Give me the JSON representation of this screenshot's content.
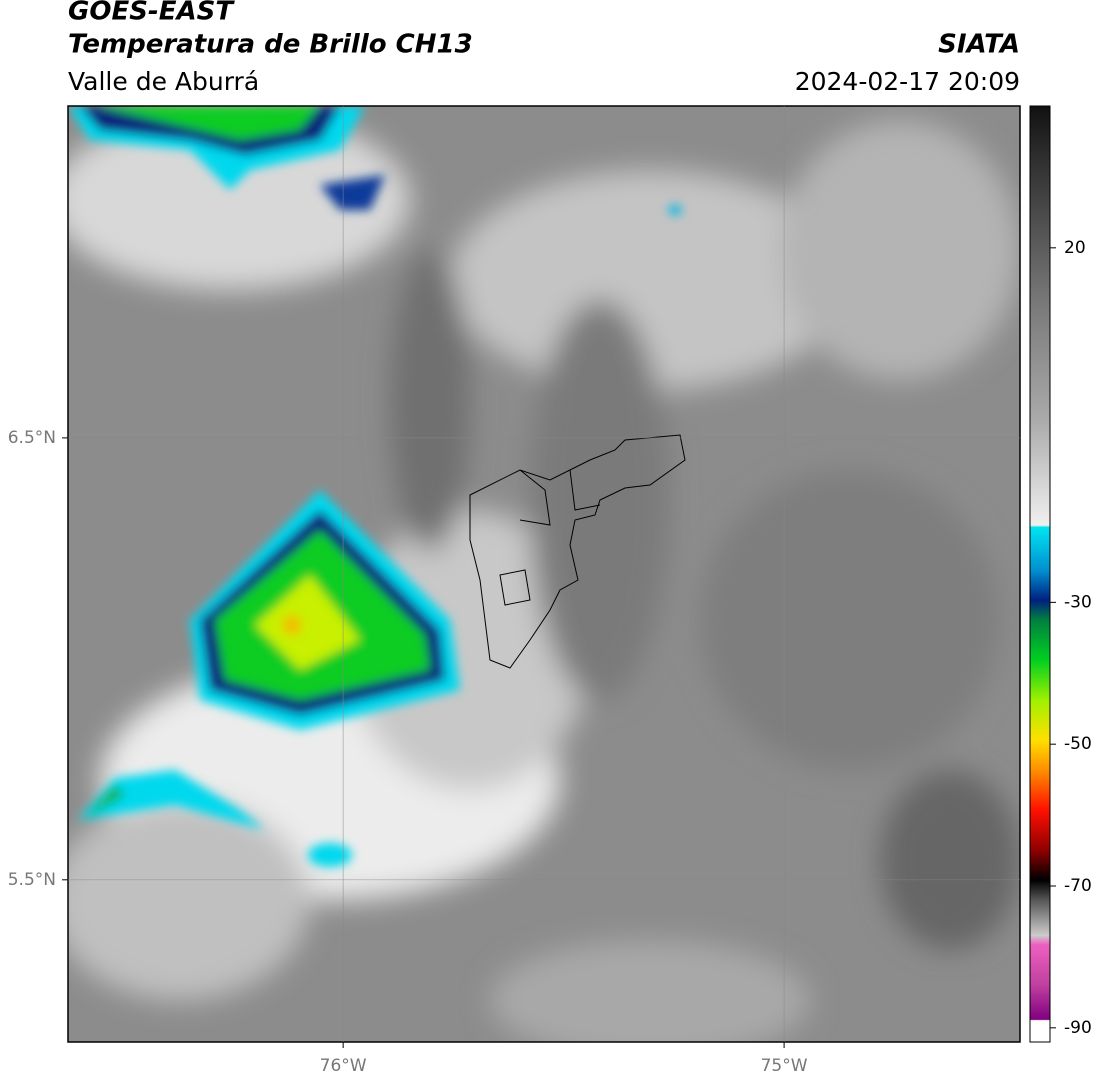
{
  "header": {
    "title": "GOES-EAST",
    "subtitle": "Temperatura de Brillo CH13",
    "region": "Valle de Aburrá",
    "source": "SIATA",
    "timestamp": "2024-02-17 20:09"
  },
  "map": {
    "lon_range": [
      -76.624,
      -74.465
    ],
    "lat_range": [
      5.133,
      7.251
    ],
    "lon_ticks": [
      {
        "value": -76,
        "label": "76°W"
      },
      {
        "value": -75,
        "label": "75°W"
      }
    ],
    "lat_ticks": [
      {
        "value": 6.5,
        "label": "6.5°N"
      },
      {
        "value": 5.5,
        "label": "5.5°N"
      }
    ],
    "colorbar": {
      "range": [
        -92,
        40
      ],
      "ticks": [
        20,
        -30,
        -50,
        -70,
        -90
      ]
    }
  }
}
